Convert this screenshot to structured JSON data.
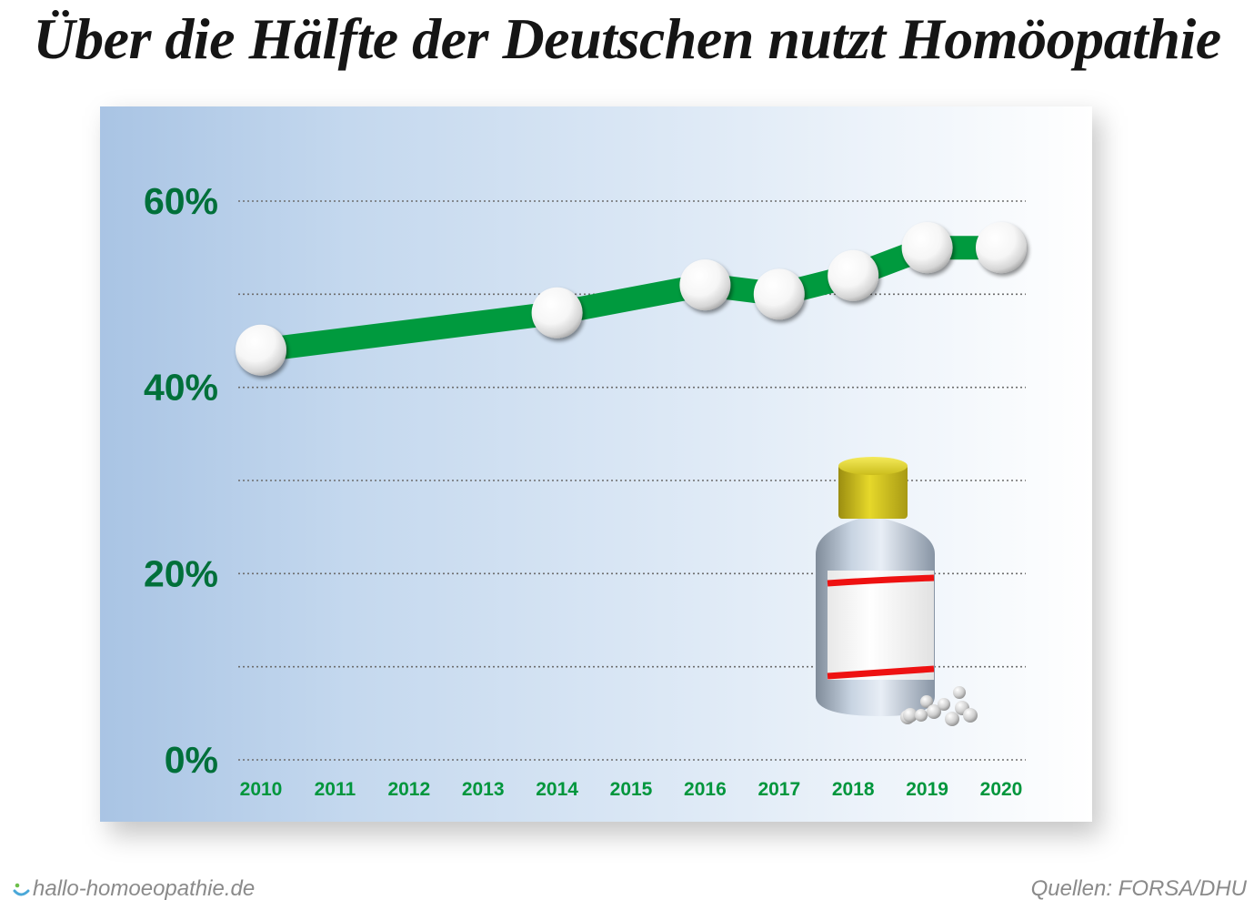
{
  "title": "Über die Hälfte der Deutschen nutzt Homöopathie",
  "footer": {
    "website": "hallo-homoeopathie.de",
    "source": "Quellen: FORSA/DHU"
  },
  "colors": {
    "line": "#009a3e",
    "tick_label": "#00703a",
    "year_label": "#00963c",
    "label_band": "#ee1111",
    "cap": "#d9c81a"
  },
  "icons": [
    "smile-icon",
    "medicine-bottle-icon",
    "globules-icon",
    "globule-marker-icon"
  ],
  "chart_data": {
    "type": "line",
    "title": "Über die Hälfte der Deutschen nutzt Homöopathie",
    "xlabel": "",
    "ylabel": "",
    "categories": [
      "2010",
      "2011",
      "2012",
      "2013",
      "2014",
      "2015",
      "2016",
      "2017",
      "2018",
      "2019",
      "2020"
    ],
    "ylim": [
      0,
      60
    ],
    "yticks": [
      0,
      20,
      40,
      60
    ],
    "ytick_labels": [
      "0%",
      "20%",
      "40%",
      "60%"
    ],
    "grid": true,
    "legend": "none",
    "series": [
      {
        "points": [
          {
            "x": "2010",
            "y": 44
          },
          {
            "x": "2014",
            "y": 48
          },
          {
            "x": "2016",
            "y": 51
          },
          {
            "x": "2017",
            "y": 50
          },
          {
            "x": "2018",
            "y": 52
          },
          {
            "x": "2019",
            "y": 55
          },
          {
            "x": "2020",
            "y": 55
          }
        ]
      }
    ]
  }
}
